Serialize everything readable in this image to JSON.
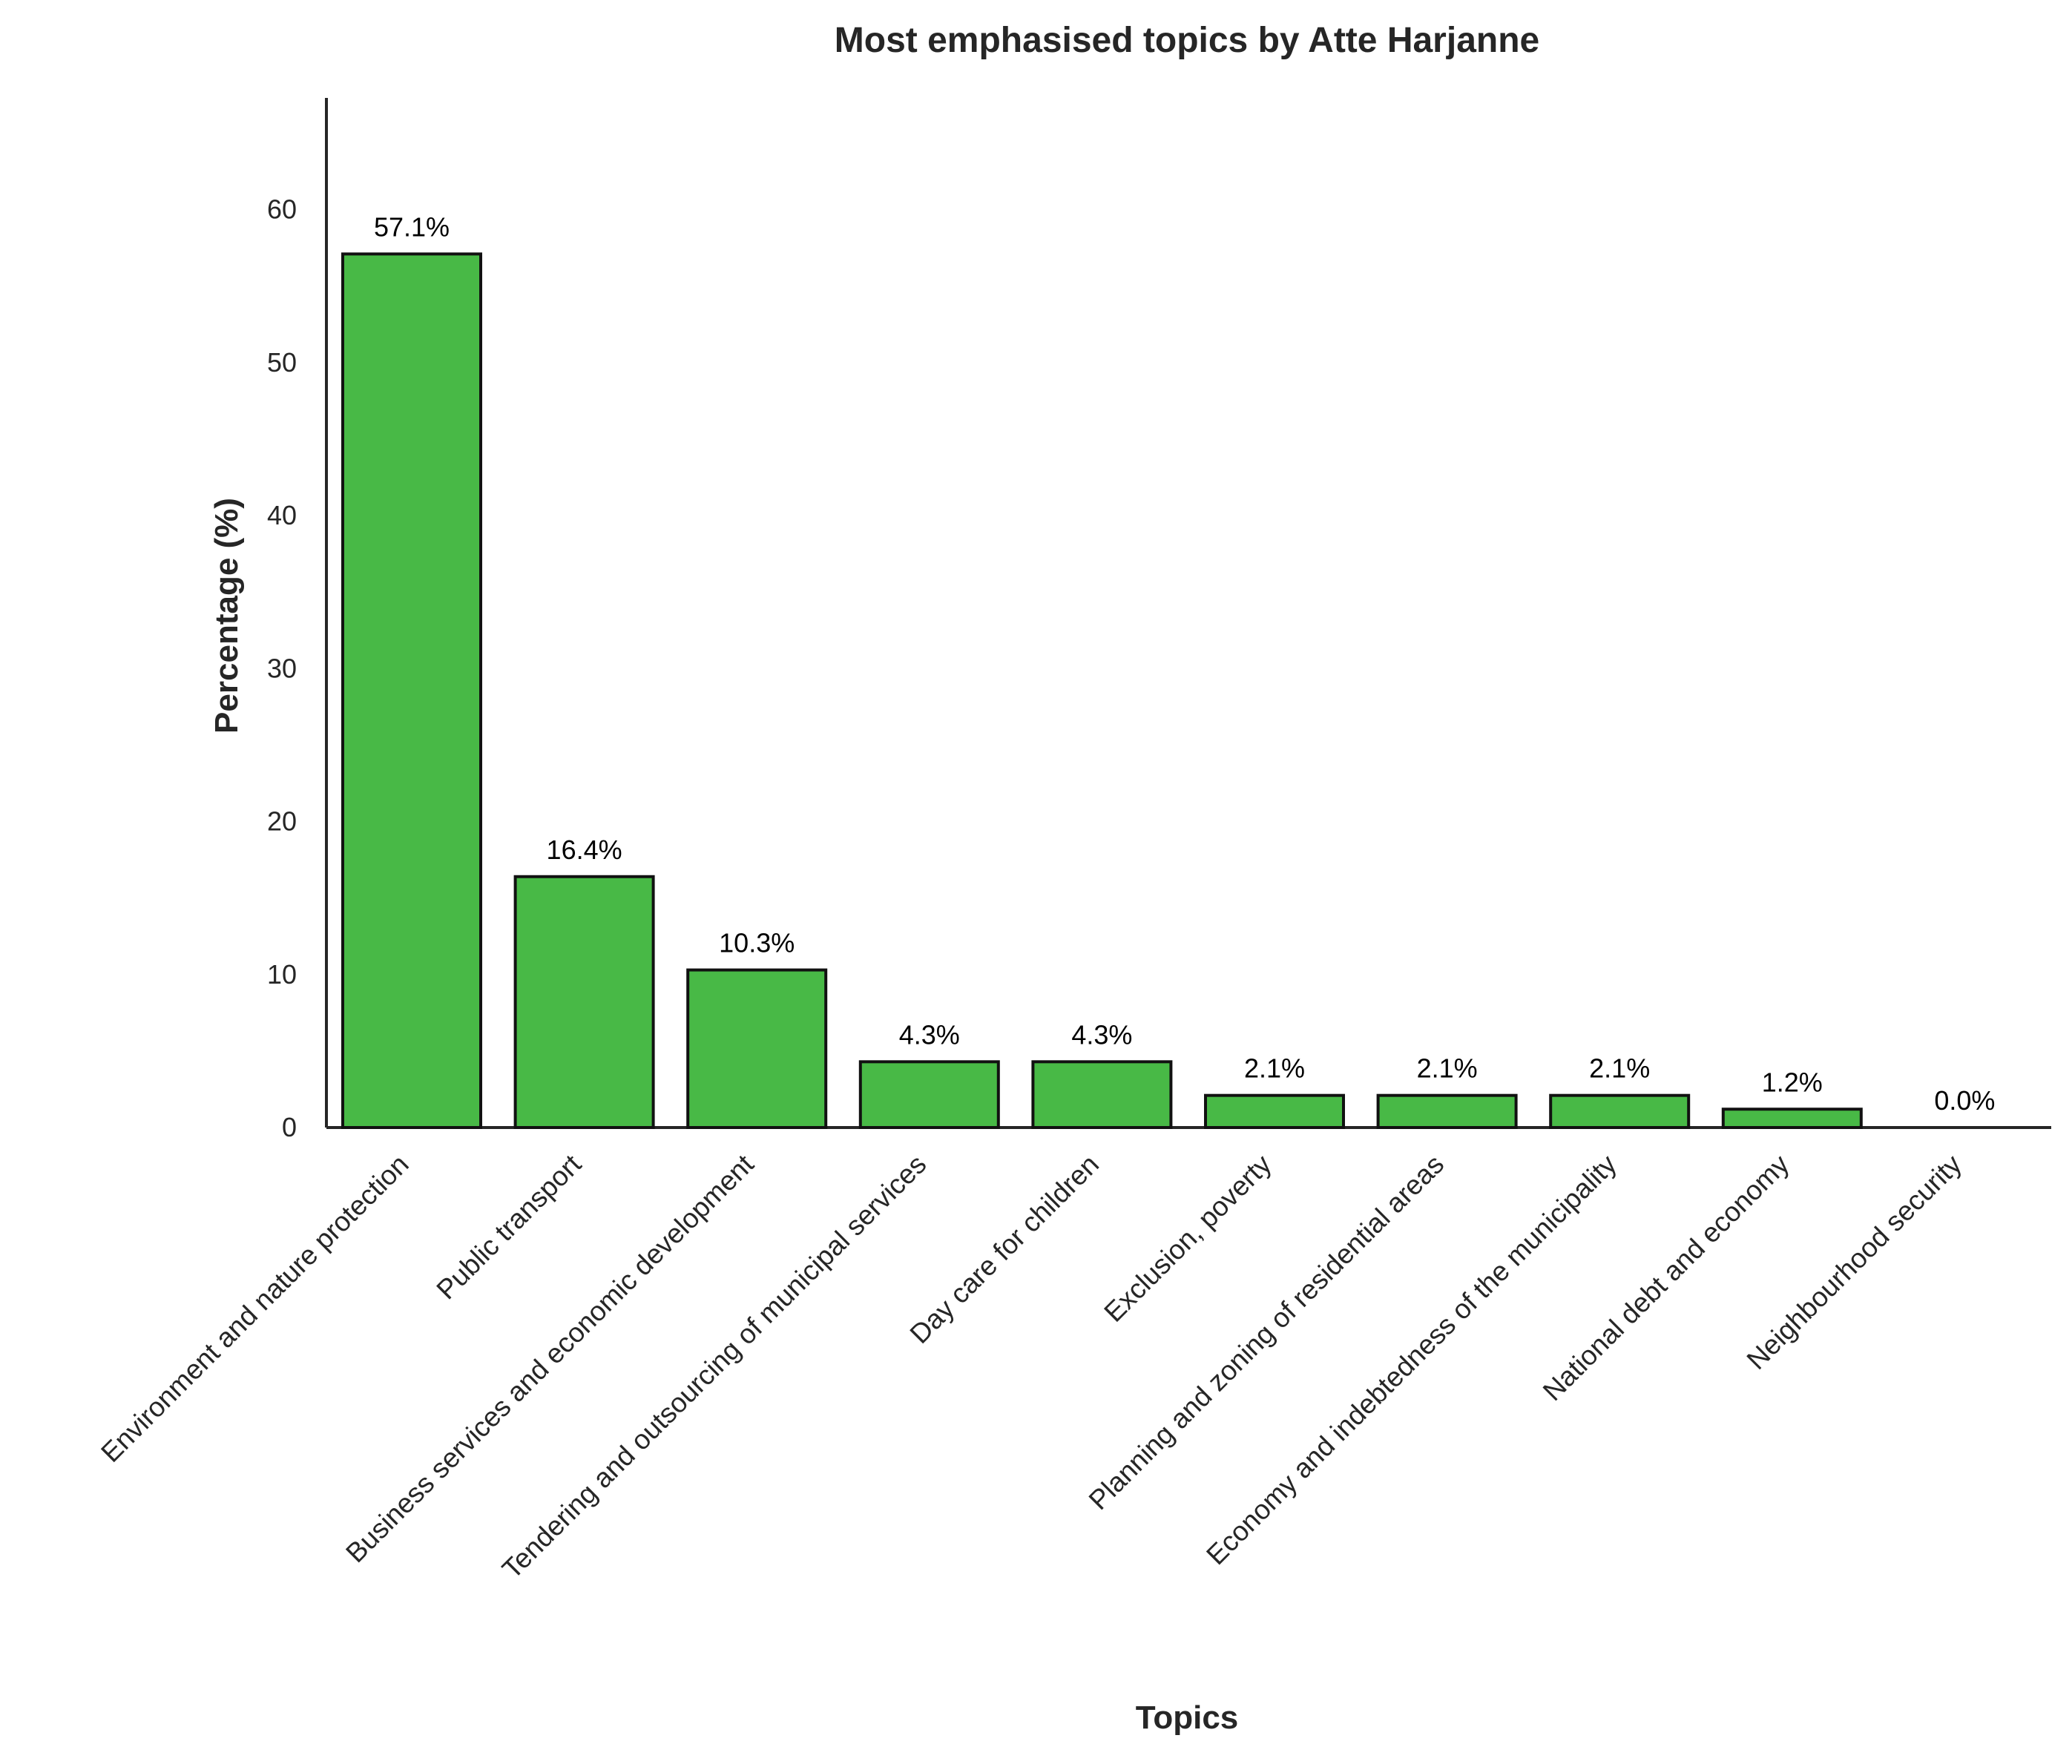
{
  "chart_data": {
    "type": "bar",
    "title": "Most emphasised topics by Atte Harjanne",
    "xlabel": "Topics",
    "ylabel": "Percentage (%)",
    "ylim": [
      0,
      67.3
    ],
    "yticks": [
      0,
      10,
      20,
      30,
      40,
      50,
      60
    ],
    "grid": false,
    "bar_color": "#48b946",
    "edge_color": "#111111",
    "categories": [
      "Environment and nature protection",
      "Public transport",
      "Business services and economic development",
      "Tendering and outsourcing of municipal services",
      "Day care for children",
      "Exclusion, poverty",
      "Planning and zoning of residential areas",
      "Economy and indebtedness of the municipality",
      "National debt and economy",
      "Neighbourhood security"
    ],
    "values": [
      57.1,
      16.4,
      10.3,
      4.3,
      4.3,
      2.1,
      2.1,
      2.1,
      1.2,
      0.0
    ],
    "data_labels": [
      "57.1%",
      "16.4%",
      "10.3%",
      "4.3%",
      "4.3%",
      "2.1%",
      "2.1%",
      "2.1%",
      "1.2%",
      "0.0%"
    ]
  }
}
